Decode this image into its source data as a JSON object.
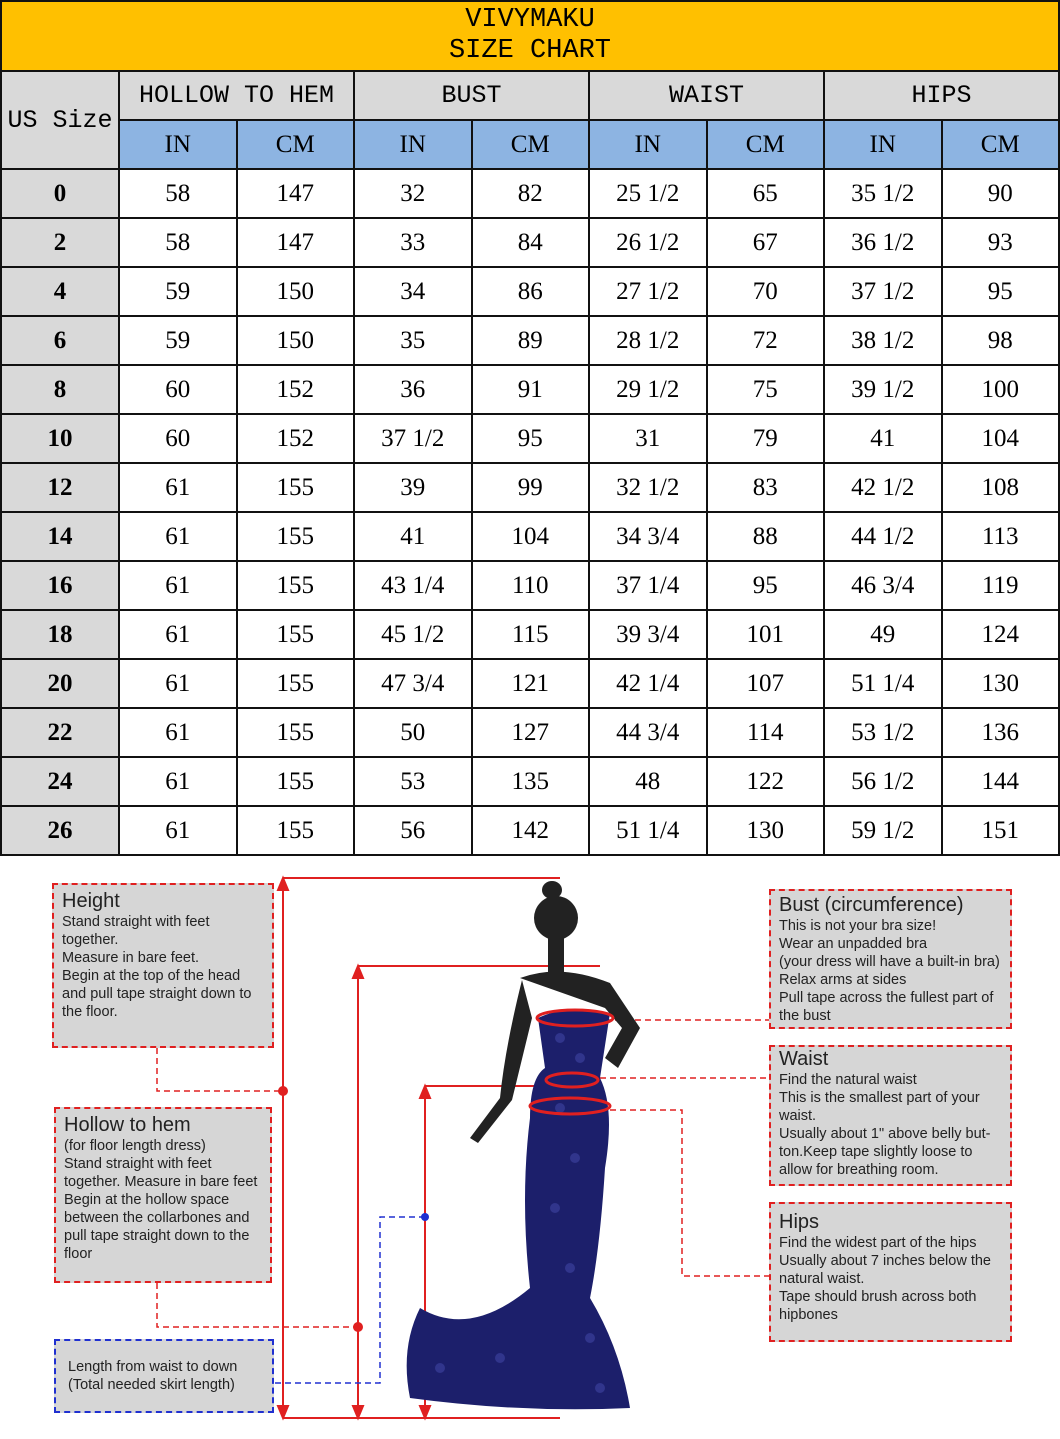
{
  "title": {
    "brand": "VIVYMAKU",
    "subtitle": "SIZE CHART"
  },
  "header": {
    "us_size": "US Size",
    "groups": [
      "HOLLOW TO HEM",
      "BUST",
      "WAIST",
      "HIPS"
    ],
    "units": [
      "IN",
      "CM",
      "IN",
      "CM",
      "IN",
      "CM",
      "IN",
      "CM"
    ]
  },
  "rows": [
    [
      "0",
      "58",
      "147",
      "32",
      "82",
      "25 1/2",
      "65",
      "35 1/2",
      "90"
    ],
    [
      "2",
      "58",
      "147",
      "33",
      "84",
      "26 1/2",
      "67",
      "36 1/2",
      "93"
    ],
    [
      "4",
      "59",
      "150",
      "34",
      "86",
      "27 1/2",
      "70",
      "37 1/2",
      "95"
    ],
    [
      "6",
      "59",
      "150",
      "35",
      "89",
      "28 1/2",
      "72",
      "38 1/2",
      "98"
    ],
    [
      "8",
      "60",
      "152",
      "36",
      "91",
      "29 1/2",
      "75",
      "39 1/2",
      "100"
    ],
    [
      "10",
      "60",
      "152",
      "37 1/2",
      "95",
      "31",
      "79",
      "41",
      "104"
    ],
    [
      "12",
      "61",
      "155",
      "39",
      "99",
      "32 1/2",
      "83",
      "42 1/2",
      "108"
    ],
    [
      "14",
      "61",
      "155",
      "41",
      "104",
      "34 3/4",
      "88",
      "44 1/2",
      "113"
    ],
    [
      "16",
      "61",
      "155",
      "43 1/4",
      "110",
      "37 1/4",
      "95",
      "46 3/4",
      "119"
    ],
    [
      "18",
      "61",
      "155",
      "45 1/2",
      "115",
      "39 3/4",
      "101",
      "49",
      "124"
    ],
    [
      "20",
      "61",
      "155",
      "47 3/4",
      "121",
      "42 1/4",
      "107",
      "51 1/4",
      "130"
    ],
    [
      "22",
      "61",
      "155",
      "50",
      "127",
      "44 3/4",
      "114",
      "53 1/2",
      "136"
    ],
    [
      "24",
      "61",
      "155",
      "53",
      "135",
      "48",
      "122",
      "56 1/2",
      "144"
    ],
    [
      "26",
      "61",
      "155",
      "56",
      "142",
      "51 1/4",
      "130",
      "59 1/2",
      "151"
    ]
  ],
  "guide": {
    "height": {
      "title": "Height",
      "lines": [
        "Stand straight with feet",
        "together.",
        "Measure in bare feet.",
        "Begin at the top of the head",
        "and pull tape straight down to",
        "the floor."
      ]
    },
    "hollow": {
      "title": "Hollow to hem",
      "lines": [
        "(for floor length dress)",
        "Stand straight with feet",
        "together. Measure in bare feet",
        "Begin at the hollow space",
        "between the collarbones and",
        "pull tape straight down to the",
        "floor"
      ]
    },
    "skirt": {
      "lines": [
        "Length from waist to down",
        "(Total needed skirt length)"
      ]
    },
    "bust": {
      "title": "Bust (circumference)",
      "lines": [
        "This is not your bra size!",
        "Wear an unpadded bra",
        "(your dress will have a built-in bra)",
        "Relax arms at sides",
        "Pull tape across the fullest part of",
        "the bust"
      ]
    },
    "waist": {
      "title": "Waist",
      "lines": [
        "Find the natural waist",
        "This is the smallest part of your",
        "waist.",
        "Usually about 1\" above belly but-",
        "ton.Keep tape slightly loose to",
        "allow for breathing room."
      ]
    },
    "hips": {
      "title": "Hips",
      "lines": [
        "Find the widest part of the hips",
        "Usually about 7 inches below the",
        "natural waist.",
        "Tape should brush across both",
        "hipbones"
      ]
    }
  },
  "colors": {
    "title_bg": "#FFC000",
    "header_bg": "#D9D9D9",
    "unit_bg": "#8DB4E2",
    "measure_line": "#E02020",
    "dress": "#1C1F6B"
  }
}
